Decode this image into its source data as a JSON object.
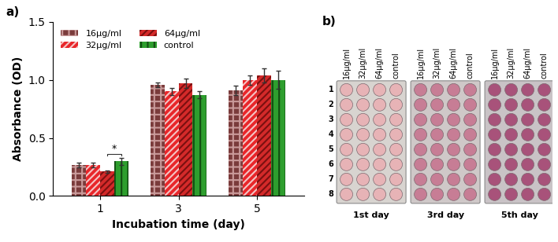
{
  "chart_data": {
    "type": "bar",
    "label": "a)",
    "x_label": "Incubation time (day)",
    "y_label": "Absorbance (OD)",
    "categories": [
      "1",
      "3",
      "5"
    ],
    "series": [
      {
        "name": "16µg/ml",
        "color": "#7a3b3b",
        "values": [
          0.27,
          0.96,
          0.91
        ],
        "errors": [
          0.02,
          0.02,
          0.04
        ]
      },
      {
        "name": "32µg/ml",
        "color": "#e8262a",
        "values": [
          0.27,
          0.9,
          1.0
        ],
        "errors": [
          0.02,
          0.03,
          0.04
        ]
      },
      {
        "name": "64µg/ml",
        "color": "#d42a2a",
        "values": [
          0.21,
          0.97,
          1.04
        ],
        "errors": [
          0.01,
          0.04,
          0.06
        ]
      },
      {
        "name": "control",
        "color": "#2e9e2e",
        "values": [
          0.3,
          0.87,
          1.0
        ],
        "errors": [
          0.03,
          0.03,
          0.08
        ]
      }
    ],
    "ylim": [
      0.0,
      1.5
    ],
    "yticks": [
      0.0,
      0.5,
      1.0,
      1.5
    ],
    "legend": "upper left",
    "grid": false,
    "annotations": [
      {
        "text": "*",
        "category": "1",
        "between": [
          "64µg/ml",
          "control"
        ]
      }
    ]
  },
  "plates": {
    "label": "b)",
    "columns": [
      "16µg/ml",
      "32µg/ml",
      "64µg/ml",
      "control"
    ],
    "rows": [
      "1",
      "2",
      "3",
      "4",
      "5",
      "6",
      "7",
      "8"
    ],
    "days": [
      "1st day",
      "3rd day",
      "5th day"
    ]
  }
}
